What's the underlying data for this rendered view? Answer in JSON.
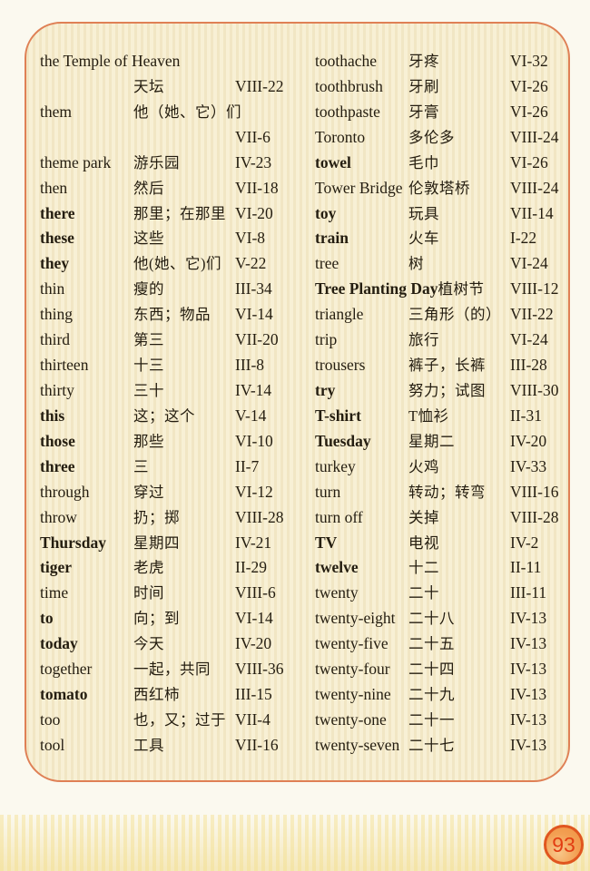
{
  "page": {
    "page_number": "93"
  },
  "glossary": {
    "columns": [
      {
        "rows": [
          {
            "word": "the Temple of Heaven",
            "chinese": "",
            "code": "",
            "bold": false
          },
          {
            "word": "",
            "chinese": "天坛",
            "code": "VIII-22",
            "bold": false
          },
          {
            "word": "them",
            "chinese": "他（她、它）们",
            "code": "",
            "bold": false
          },
          {
            "word": "",
            "chinese": "",
            "code": "VII-6",
            "bold": false
          },
          {
            "word": "theme park",
            "chinese": "游乐园",
            "code": "IV-23",
            "bold": false
          },
          {
            "word": "then",
            "chinese": "然后",
            "code": "VII-18",
            "bold": false
          },
          {
            "word": "there",
            "chinese": "那里；在那里",
            "code": "VI-20",
            "bold": true
          },
          {
            "word": "these",
            "chinese": "这些",
            "code": "VI-8",
            "bold": true
          },
          {
            "word": "they",
            "chinese": "他(她、它)们",
            "code": "V-22",
            "bold": true
          },
          {
            "word": "thin",
            "chinese": "瘦的",
            "code": "III-34",
            "bold": false
          },
          {
            "word": "thing",
            "chinese": "东西；物品",
            "code": "VI-14",
            "bold": false
          },
          {
            "word": "third",
            "chinese": "第三",
            "code": "VII-20",
            "bold": false
          },
          {
            "word": "thirteen",
            "chinese": "十三",
            "code": "III-8",
            "bold": false
          },
          {
            "word": "thirty",
            "chinese": "三十",
            "code": "IV-14",
            "bold": false
          },
          {
            "word": "this",
            "chinese": "这；这个",
            "code": "V-14",
            "bold": true
          },
          {
            "word": "those",
            "chinese": "那些",
            "code": "VI-10",
            "bold": true
          },
          {
            "word": "three",
            "chinese": "三",
            "code": "II-7",
            "bold": true
          },
          {
            "word": "through",
            "chinese": "穿过",
            "code": "VI-12",
            "bold": false
          },
          {
            "word": "throw",
            "chinese": "扔；掷",
            "code": "VIII-28",
            "bold": false
          },
          {
            "word": "Thursday",
            "chinese": "星期四",
            "code": "IV-21",
            "bold": true
          },
          {
            "word": "tiger",
            "chinese": "老虎",
            "code": "II-29",
            "bold": true
          },
          {
            "word": "time",
            "chinese": "时间",
            "code": "VIII-6",
            "bold": false
          },
          {
            "word": "to",
            "chinese": "向；到",
            "code": "VI-14",
            "bold": true
          },
          {
            "word": "today",
            "chinese": "今天",
            "code": "IV-20",
            "bold": true
          },
          {
            "word": "together",
            "chinese": "一起，共同",
            "code": "VIII-36",
            "bold": false
          },
          {
            "word": "tomato",
            "chinese": "西红柿",
            "code": "III-15",
            "bold": true
          },
          {
            "word": "too",
            "chinese": "也，又；过于",
            "code": "VII-4",
            "bold": false
          },
          {
            "word": "tool",
            "chinese": "工具",
            "code": "VII-16",
            "bold": false
          }
        ]
      },
      {
        "rows": [
          {
            "word": "toothache",
            "chinese": "牙疼",
            "code": "VI-32",
            "bold": false
          },
          {
            "word": "toothbrush",
            "chinese": "牙刷",
            "code": "VI-26",
            "bold": false
          },
          {
            "word": "toothpaste",
            "chinese": "牙膏",
            "code": "VI-26",
            "bold": false
          },
          {
            "word": "Toronto",
            "chinese": "多伦多",
            "code": "VIII-24",
            "bold": false
          },
          {
            "word": "towel",
            "chinese": "毛巾",
            "code": "VI-26",
            "bold": true
          },
          {
            "word": "Tower Bridge",
            "chinese": "伦敦塔桥",
            "code": "VIII-24",
            "bold": false
          },
          {
            "word": "toy",
            "chinese": "玩具",
            "code": "VII-14",
            "bold": true
          },
          {
            "word": "train",
            "chinese": "火车",
            "code": "I-22",
            "bold": true
          },
          {
            "word": "tree",
            "chinese": "树",
            "code": "VI-24",
            "bold": false
          },
          {
            "word": "Tree Planting Day",
            "chinese": "植树节",
            "code": "VIII-12",
            "bold": true
          },
          {
            "word": "triangle",
            "chinese": "三角形（的）",
            "code": "VII-22",
            "bold": false
          },
          {
            "word": "trip",
            "chinese": "旅行",
            "code": "VI-24",
            "bold": false
          },
          {
            "word": "trousers",
            "chinese": "裤子，长裤",
            "code": "III-28",
            "bold": false
          },
          {
            "word": "try",
            "chinese": "努力；试图",
            "code": "VIII-30",
            "bold": true
          },
          {
            "word": "T-shirt",
            "chinese": "T恤衫",
            "code": "II-31",
            "bold": true
          },
          {
            "word": "Tuesday",
            "chinese": "星期二",
            "code": "IV-20",
            "bold": true
          },
          {
            "word": "turkey",
            "chinese": "火鸡",
            "code": "IV-33",
            "bold": false
          },
          {
            "word": "turn",
            "chinese": "转动；转弯",
            "code": "VIII-16",
            "bold": false
          },
          {
            "word": "turn off",
            "chinese": "关掉",
            "code": "VIII-28",
            "bold": false
          },
          {
            "word": "TV",
            "chinese": "电视",
            "code": "IV-2",
            "bold": true
          },
          {
            "word": "twelve",
            "chinese": "十二",
            "code": "II-11",
            "bold": true
          },
          {
            "word": "twenty",
            "chinese": "二十",
            "code": "III-11",
            "bold": false
          },
          {
            "word": "twenty-eight",
            "chinese": "二十八",
            "code": "IV-13",
            "bold": false
          },
          {
            "word": "twenty-five",
            "chinese": "二十五",
            "code": "IV-13",
            "bold": false
          },
          {
            "word": "twenty-four",
            "chinese": "二十四",
            "code": "IV-13",
            "bold": false
          },
          {
            "word": "twenty-nine",
            "chinese": "二十九",
            "code": "IV-13",
            "bold": false
          },
          {
            "word": "twenty-one",
            "chinese": "二十一",
            "code": "IV-13",
            "bold": false
          },
          {
            "word": "twenty-seven",
            "chinese": "二十七",
            "code": "IV-13",
            "bold": false
          }
        ]
      }
    ]
  }
}
